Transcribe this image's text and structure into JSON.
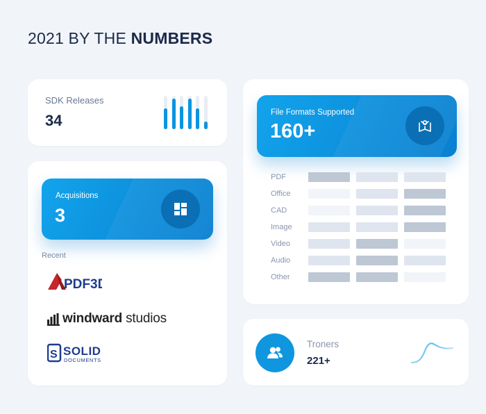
{
  "header": {
    "title_prefix": "2021 BY THE ",
    "title_bold": "NUMBERS"
  },
  "sdk": {
    "label": "SDK Releases",
    "value": "34",
    "bars": [
      0.62,
      0.92,
      0.68,
      0.92,
      0.62,
      0.22
    ],
    "accent": "#0a95e0"
  },
  "acquisitions": {
    "label": "Acquisitions",
    "value": "3",
    "icon": "grid-icon",
    "recent_label": "Recent",
    "logos": [
      {
        "name": "PDF3D",
        "icon": "pdf3d-logo"
      },
      {
        "name_light_prefix": "windward",
        "name_suffix": " studios",
        "icon": "windward-logo"
      },
      {
        "name": "SOLID",
        "sub": "DOCUMENTS",
        "icon": "solid-documents-logo"
      }
    ]
  },
  "formats": {
    "label": "File Formats Supported",
    "value": "160+",
    "icon": "book-icon",
    "rows": [
      {
        "name": "PDF",
        "levels": [
          2,
          1,
          1
        ]
      },
      {
        "name": "Office",
        "levels": [
          0,
          1,
          2
        ]
      },
      {
        "name": "CAD",
        "levels": [
          0,
          1,
          2
        ]
      },
      {
        "name": "Image",
        "levels": [
          1,
          1,
          2
        ]
      },
      {
        "name": "Video",
        "levels": [
          1,
          2,
          0
        ]
      },
      {
        "name": "Audio",
        "levels": [
          1,
          2,
          1
        ]
      },
      {
        "name": "Other",
        "levels": [
          2,
          2,
          0
        ]
      }
    ]
  },
  "troners": {
    "label": "Troners",
    "value": "221+",
    "icon": "users-icon"
  },
  "colors": {
    "background": "#f1f4f8",
    "accent_blue": "#0f96df",
    "title_text": "#1b2a4a"
  }
}
